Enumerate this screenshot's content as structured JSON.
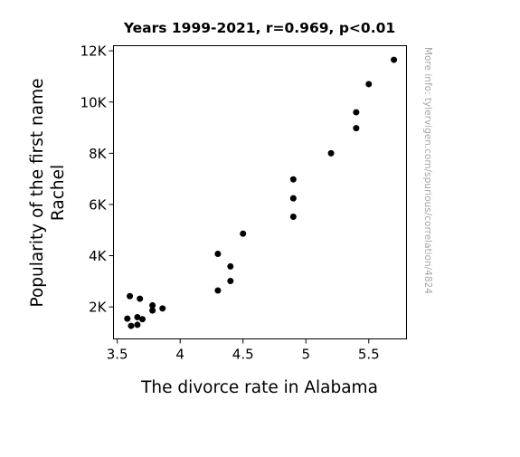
{
  "chart_data": {
    "type": "scatter",
    "title": "Years 1999-2021, r=0.969, p<0.01",
    "xlabel": "The divorce rate in Alabama",
    "ylabel_lines": [
      "Popularity of the first name",
      "Rachel"
    ],
    "credit": "More info: tylervigen.com/spurious/correlation/4824",
    "xlim": [
      3.47,
      5.8
    ],
    "ylim": [
      750,
      12200
    ],
    "xticks": [
      3.5,
      4,
      4.5,
      5,
      5.5
    ],
    "xtick_labels": [
      "3.5",
      "4",
      "4.5",
      "5",
      "5.5"
    ],
    "yticks": [
      2000,
      4000,
      6000,
      8000,
      10000,
      12000
    ],
    "ytick_labels": [
      "2K",
      "4K",
      "6K",
      "8K",
      "10K",
      "12K"
    ],
    "grid": false,
    "marker_color": "#000000",
    "points": [
      {
        "x": 5.7,
        "y": 11650
      },
      {
        "x": 5.5,
        "y": 10700
      },
      {
        "x": 5.4,
        "y": 9600
      },
      {
        "x": 5.4,
        "y": 8980
      },
      {
        "x": 5.2,
        "y": 8000
      },
      {
        "x": 4.9,
        "y": 6980
      },
      {
        "x": 4.9,
        "y": 6240
      },
      {
        "x": 4.9,
        "y": 5520
      },
      {
        "x": 4.5,
        "y": 4860
      },
      {
        "x": 4.3,
        "y": 4070
      },
      {
        "x": 4.4,
        "y": 3580
      },
      {
        "x": 4.4,
        "y": 3010
      },
      {
        "x": 4.3,
        "y": 2640
      },
      {
        "x": 3.6,
        "y": 2420
      },
      {
        "x": 3.68,
        "y": 2320
      },
      {
        "x": 3.78,
        "y": 2060
      },
      {
        "x": 3.86,
        "y": 1940
      },
      {
        "x": 3.78,
        "y": 1860
      },
      {
        "x": 3.66,
        "y": 1600
      },
      {
        "x": 3.58,
        "y": 1540
      },
      {
        "x": 3.7,
        "y": 1520
      },
      {
        "x": 3.66,
        "y": 1300
      },
      {
        "x": 3.61,
        "y": 1260
      }
    ]
  }
}
